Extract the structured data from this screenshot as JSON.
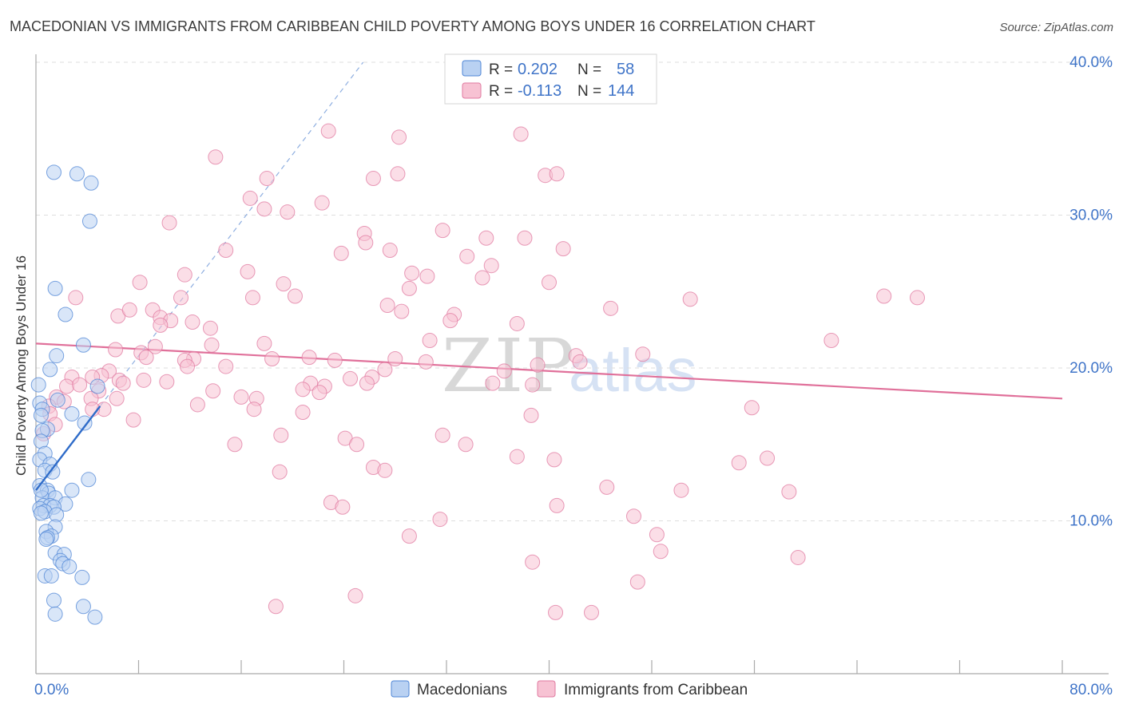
{
  "chart_data": {
    "type": "scatter",
    "title": "MACEDONIAN VS IMMIGRANTS FROM CARIBBEAN CHILD POVERTY AMONG BOYS UNDER 16 CORRELATION CHART",
    "source": "Source: ZipAtlas.com",
    "ylabel": "Child Poverty Among Boys Under 16",
    "xlabel": "",
    "xlim": [
      0,
      80
    ],
    "ylim": [
      0,
      40
    ],
    "x_tick_labels": [
      "0.0%",
      "80.0%"
    ],
    "y_tick_labels": [
      "10.0%",
      "20.0%",
      "30.0%",
      "40.0%"
    ],
    "y_ticks": [
      10,
      20,
      30,
      40
    ],
    "grid": true,
    "legend_position": "top-center",
    "watermark": {
      "zip": "ZIP",
      "atlas": "atlas"
    },
    "stats": [
      {
        "r_label": "R =",
        "r_value": "0.202",
        "n_label": "N =",
        "n_value": "58"
      },
      {
        "r_label": "R =",
        "r_value": "-0.113",
        "n_label": "N =",
        "n_value": "144"
      }
    ],
    "series": [
      {
        "name": "Macedonians",
        "color": "#4f86d6",
        "fill": "#b9d1f2",
        "trend": {
          "x": [
            0,
            5
          ],
          "y": [
            12.0,
            17.5
          ],
          "dashed_extension_to": [
            25.5,
            40.0
          ]
        },
        "points": [
          [
            1.4,
            32.8
          ],
          [
            3.2,
            32.7
          ],
          [
            4.3,
            32.1
          ],
          [
            4.2,
            29.6
          ],
          [
            1.5,
            25.2
          ],
          [
            2.3,
            23.5
          ],
          [
            3.7,
            21.5
          ],
          [
            1.6,
            20.8
          ],
          [
            1.1,
            19.9
          ],
          [
            0.2,
            18.9
          ],
          [
            4.8,
            18.8
          ],
          [
            1.7,
            17.9
          ],
          [
            0.3,
            17.7
          ],
          [
            0.5,
            17.3
          ],
          [
            2.8,
            17.0
          ],
          [
            0.4,
            16.9
          ],
          [
            3.8,
            16.4
          ],
          [
            0.9,
            16.0
          ],
          [
            0.5,
            15.9
          ],
          [
            0.4,
            15.2
          ],
          [
            0.7,
            14.4
          ],
          [
            0.3,
            14.0
          ],
          [
            1.1,
            13.7
          ],
          [
            0.7,
            13.3
          ],
          [
            1.3,
            13.2
          ],
          [
            4.1,
            12.7
          ],
          [
            0.3,
            12.3
          ],
          [
            0.9,
            12.0
          ],
          [
            2.8,
            12.0
          ],
          [
            1.0,
            11.8
          ],
          [
            0.5,
            11.5
          ],
          [
            1.5,
            11.5
          ],
          [
            2.3,
            11.1
          ],
          [
            0.6,
            11.0
          ],
          [
            1.1,
            11.0
          ],
          [
            1.4,
            10.9
          ],
          [
            0.3,
            10.8
          ],
          [
            0.7,
            10.6
          ],
          [
            0.4,
            10.5
          ],
          [
            1.6,
            10.4
          ],
          [
            1.5,
            9.6
          ],
          [
            0.8,
            9.3
          ],
          [
            1.2,
            9.0
          ],
          [
            0.9,
            8.9
          ],
          [
            0.8,
            8.8
          ],
          [
            1.5,
            7.9
          ],
          [
            2.2,
            7.8
          ],
          [
            1.9,
            7.4
          ],
          [
            2.1,
            7.2
          ],
          [
            2.6,
            7.0
          ],
          [
            0.7,
            6.4
          ],
          [
            1.2,
            6.4
          ],
          [
            3.6,
            6.3
          ],
          [
            1.4,
            4.8
          ],
          [
            3.7,
            4.4
          ],
          [
            1.5,
            3.9
          ],
          [
            4.6,
            3.7
          ],
          [
            0.4,
            12.0
          ]
        ]
      },
      {
        "name": "Immigrants from Caribbean",
        "color": "#e07aa0",
        "fill": "#f7c2d3",
        "trend": {
          "x": [
            0,
            80
          ],
          "y": [
            21.6,
            18.0
          ]
        },
        "points": [
          [
            22.8,
            35.5
          ],
          [
            28.3,
            35.1
          ],
          [
            37.8,
            35.3
          ],
          [
            14.0,
            33.8
          ],
          [
            18.0,
            32.4
          ],
          [
            26.3,
            32.4
          ],
          [
            28.2,
            32.7
          ],
          [
            39.7,
            32.6
          ],
          [
            40.6,
            32.7
          ],
          [
            16.7,
            31.1
          ],
          [
            17.8,
            30.4
          ],
          [
            19.6,
            30.2
          ],
          [
            22.3,
            30.8
          ],
          [
            10.4,
            29.5
          ],
          [
            25.6,
            28.8
          ],
          [
            31.7,
            29.0
          ],
          [
            35.1,
            28.5
          ],
          [
            38.1,
            28.5
          ],
          [
            25.7,
            28.2
          ],
          [
            14.8,
            27.7
          ],
          [
            23.8,
            27.5
          ],
          [
            27.6,
            27.7
          ],
          [
            33.6,
            27.3
          ],
          [
            41.1,
            27.8
          ],
          [
            16.5,
            26.3
          ],
          [
            11.6,
            26.1
          ],
          [
            29.3,
            26.2
          ],
          [
            30.5,
            26.0
          ],
          [
            35.5,
            26.7
          ],
          [
            34.8,
            25.9
          ],
          [
            8.1,
            25.6
          ],
          [
            19.3,
            25.5
          ],
          [
            40.0,
            25.6
          ],
          [
            29.1,
            25.2
          ],
          [
            3.1,
            24.6
          ],
          [
            11.3,
            24.6
          ],
          [
            16.9,
            24.6
          ],
          [
            20.2,
            24.7
          ],
          [
            51.0,
            24.5
          ],
          [
            66.1,
            24.7
          ],
          [
            68.7,
            24.6
          ],
          [
            27.4,
            24.1
          ],
          [
            28.5,
            23.7
          ],
          [
            32.6,
            23.5
          ],
          [
            6.4,
            23.4
          ],
          [
            7.3,
            23.8
          ],
          [
            9.1,
            23.8
          ],
          [
            9.7,
            23.3
          ],
          [
            10.5,
            23.1
          ],
          [
            12.2,
            23.0
          ],
          [
            32.3,
            23.1
          ],
          [
            44.8,
            23.9
          ],
          [
            13.6,
            22.6
          ],
          [
            37.5,
            22.9
          ],
          [
            9.7,
            22.8
          ],
          [
            17.8,
            21.6
          ],
          [
            30.7,
            21.8
          ],
          [
            62.0,
            21.8
          ],
          [
            13.7,
            21.5
          ],
          [
            6.2,
            21.2
          ],
          [
            9.3,
            21.4
          ],
          [
            8.2,
            21.0
          ],
          [
            8.6,
            20.7
          ],
          [
            12.3,
            20.6
          ],
          [
            11.6,
            20.5
          ],
          [
            18.4,
            20.6
          ],
          [
            21.3,
            20.7
          ],
          [
            23.3,
            20.5
          ],
          [
            28.0,
            20.6
          ],
          [
            47.3,
            20.9
          ],
          [
            42.1,
            20.8
          ],
          [
            42.4,
            20.4
          ],
          [
            30.4,
            20.4
          ],
          [
            11.8,
            20.1
          ],
          [
            14.8,
            20.1
          ],
          [
            39.1,
            20.2
          ],
          [
            5.7,
            19.8
          ],
          [
            27.2,
            19.9
          ],
          [
            36.5,
            19.8
          ],
          [
            2.8,
            19.4
          ],
          [
            5.1,
            19.5
          ],
          [
            4.4,
            19.4
          ],
          [
            6.5,
            19.2
          ],
          [
            8.4,
            19.2
          ],
          [
            24.5,
            19.3
          ],
          [
            26.2,
            19.4
          ],
          [
            35.6,
            19.0
          ],
          [
            38.7,
            18.9
          ],
          [
            2.4,
            18.8
          ],
          [
            3.4,
            18.9
          ],
          [
            4.9,
            18.5
          ],
          [
            10.2,
            19.1
          ],
          [
            21.4,
            19.0
          ],
          [
            25.8,
            19.0
          ],
          [
            22.5,
            18.8
          ],
          [
            20.8,
            18.6
          ],
          [
            1.6,
            18.1
          ],
          [
            4.3,
            18.0
          ],
          [
            2.2,
            17.8
          ],
          [
            6.3,
            18.0
          ],
          [
            13.8,
            18.5
          ],
          [
            16.0,
            18.1
          ],
          [
            17.2,
            18.0
          ],
          [
            22.1,
            18.4
          ],
          [
            1.0,
            17.5
          ],
          [
            5.3,
            17.3
          ],
          [
            12.6,
            17.6
          ],
          [
            1.1,
            17.0
          ],
          [
            4.4,
            17.3
          ],
          [
            17.0,
            17.3
          ],
          [
            20.8,
            17.1
          ],
          [
            38.6,
            16.9
          ],
          [
            55.8,
            17.4
          ],
          [
            1.5,
            16.3
          ],
          [
            7.6,
            16.6
          ],
          [
            0.6,
            15.7
          ],
          [
            19.1,
            15.6
          ],
          [
            24.1,
            15.4
          ],
          [
            31.7,
            15.6
          ],
          [
            15.5,
            15.0
          ],
          [
            25.0,
            15.0
          ],
          [
            33.5,
            15.0
          ],
          [
            37.5,
            14.2
          ],
          [
            40.4,
            14.0
          ],
          [
            54.8,
            13.8
          ],
          [
            57.0,
            14.1
          ],
          [
            26.3,
            13.5
          ],
          [
            27.2,
            13.3
          ],
          [
            19.0,
            13.2
          ],
          [
            44.5,
            12.2
          ],
          [
            50.3,
            12.0
          ],
          [
            58.7,
            11.9
          ],
          [
            23.0,
            11.2
          ],
          [
            23.9,
            10.9
          ],
          [
            40.6,
            11.0
          ],
          [
            31.5,
            10.1
          ],
          [
            46.6,
            10.3
          ],
          [
            29.1,
            9.0
          ],
          [
            48.4,
            9.1
          ],
          [
            48.7,
            8.0
          ],
          [
            59.4,
            7.6
          ],
          [
            38.7,
            7.3
          ],
          [
            46.9,
            6.0
          ],
          [
            24.9,
            5.1
          ],
          [
            18.7,
            4.4
          ],
          [
            40.5,
            4.0
          ],
          [
            43.3,
            4.0
          ],
          [
            6.8,
            19.0
          ]
        ]
      }
    ]
  }
}
